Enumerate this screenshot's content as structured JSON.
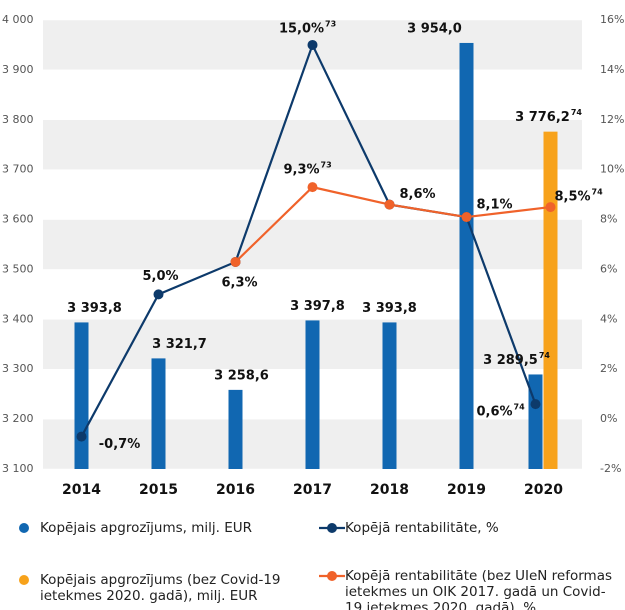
{
  "chart_data": {
    "type": "bar",
    "categories": [
      "2014",
      "2015",
      "2016",
      "2017",
      "2018",
      "2019",
      "2020"
    ],
    "ylim": [
      3100,
      4000
    ],
    "yticks": [
      {
        "value": 3100,
        "label": "3 100"
      },
      {
        "value": 3200,
        "label": "3 200"
      },
      {
        "value": 3300,
        "label": "3 300"
      },
      {
        "value": 3400,
        "label": "3 400"
      },
      {
        "value": 3500,
        "label": "3 500"
      },
      {
        "value": 3600,
        "label": "3 600"
      },
      {
        "value": 3700,
        "label": "3 700"
      },
      {
        "value": 3800,
        "label": "3 800"
      },
      {
        "value": 3900,
        "label": "3 900"
      },
      {
        "value": 4000,
        "label": "4 000"
      }
    ],
    "y2lim": [
      -2,
      16
    ],
    "y2ticks": [
      {
        "value": -2,
        "label": "-2%"
      },
      {
        "value": 0,
        "label": "0%"
      },
      {
        "value": 2,
        "label": "2%"
      },
      {
        "value": 4,
        "label": "4%"
      },
      {
        "value": 6,
        "label": "6%"
      },
      {
        "value": 8,
        "label": "8%"
      },
      {
        "value": 10,
        "label": "10%"
      },
      {
        "value": 12,
        "label": "12%"
      },
      {
        "value": 14,
        "label": "14%"
      },
      {
        "value": 16,
        "label": "16%"
      }
    ],
    "grid": "bands",
    "legend": "bottom",
    "series": [
      {
        "name": "Kopējais apgrozījums, milj. EUR",
        "kind": "bar",
        "color": "#1167b1",
        "values": [
          3393.8,
          3321.7,
          3258.6,
          3397.8,
          3393.8,
          3954.0,
          3289.5
        ],
        "value_labels": [
          "3 393,8",
          "3 321,7",
          "3 258,6",
          "3 397,8",
          "3 393,8",
          "3 954,0",
          "3 289,5"
        ],
        "notes": [
          null,
          null,
          null,
          null,
          null,
          null,
          "74"
        ]
      },
      {
        "name": "Kopējais apgrozījums (bez Covid-19 ietekmes 2020. gadā), milj. EUR",
        "kind": "bar",
        "color": "#f7a21b",
        "values": [
          null,
          null,
          null,
          null,
          null,
          null,
          3776.2
        ],
        "value_labels": [
          null,
          null,
          null,
          null,
          null,
          null,
          "3 776,2"
        ],
        "notes": [
          null,
          null,
          null,
          null,
          null,
          null,
          "74"
        ]
      },
      {
        "name": "Kopējā rentabilitāte, %",
        "kind": "line",
        "axis": "y2",
        "color": "#0d3a6b",
        "values": [
          -0.7,
          5.0,
          6.3,
          15.0,
          8.6,
          8.1,
          0.6
        ],
        "value_labels": [
          "-0,7%",
          "5,0%",
          "6,3%",
          "15,0%",
          "8,6%",
          "8,1%",
          "0,6%"
        ],
        "notes": [
          null,
          null,
          null,
          "73",
          null,
          null,
          "74"
        ]
      },
      {
        "name": "Kopējā rentabilitāte (bez UIeN reformas ietekmes un OIK 2017. gadā un Covid-19 ietekmes 2020. gadā), %",
        "kind": "line",
        "axis": "y2",
        "color": "#f0622a",
        "values": [
          null,
          null,
          6.3,
          9.3,
          8.6,
          8.1,
          8.5
        ],
        "value_labels": [
          null,
          null,
          null,
          "9,3%",
          null,
          null,
          "8,5%"
        ],
        "notes": [
          null,
          null,
          null,
          "73",
          null,
          null,
          "74"
        ]
      }
    ]
  }
}
